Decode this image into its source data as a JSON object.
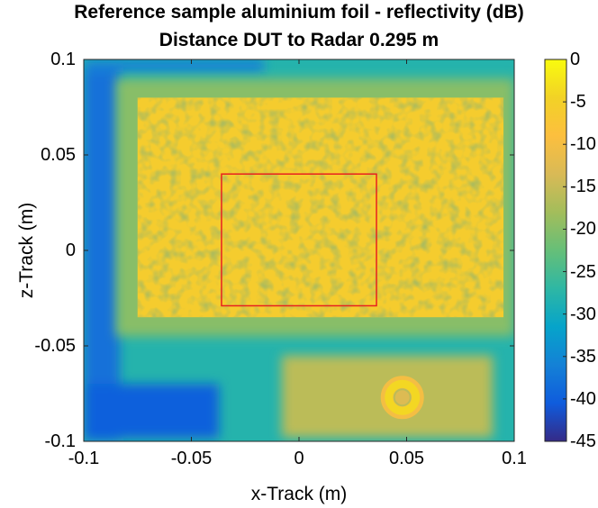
{
  "chart_data": {
    "type": "heatmap",
    "title": "Reference sample aluminium foil - reflectivity (dB)",
    "subtitle": "Distance DUT to Radar 0.295 m",
    "xlabel": "x-Track (m)",
    "ylabel": "z-Track (m)",
    "xlim": [
      -0.1,
      0.1
    ],
    "ylim": [
      -0.1,
      0.1
    ],
    "x_ticks": [
      "-0.1",
      "-0.05",
      "0",
      "0.05",
      "0.1"
    ],
    "y_ticks": [
      "0.1",
      "0.05",
      "0",
      "-0.05",
      "-0.1"
    ],
    "colorbar": {
      "range": [
        -45,
        0
      ],
      "ticks": [
        "0",
        "-5",
        "-10",
        "-15",
        "-20",
        "-25",
        "-30",
        "-35",
        "-40",
        "-45"
      ],
      "colormap": "parula"
    },
    "regions": [
      {
        "name": "foil sample area",
        "x": [
          -0.075,
          0.095
        ],
        "z": [
          -0.035,
          0.08
        ],
        "level_db": -6
      },
      {
        "name": "lower strip",
        "x": [
          -0.008,
          0.09
        ],
        "z": [
          -0.098,
          -0.055
        ],
        "level_db": -16
      },
      {
        "name": "ring target",
        "x_center": 0.048,
        "z_center": -0.077,
        "level_db": -4
      },
      {
        "name": "background",
        "level_db": -28
      }
    ],
    "roi_box": {
      "x": [
        -0.036,
        0.036
      ],
      "z": [
        -0.029,
        0.04
      ],
      "color": "#e8211f"
    },
    "grid": false
  }
}
